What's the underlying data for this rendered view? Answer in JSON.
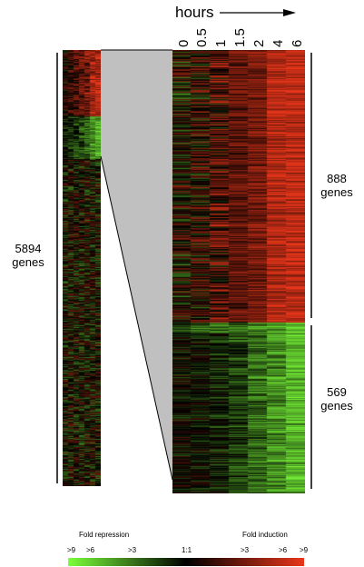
{
  "header": {
    "title": "hours"
  },
  "time_points": [
    "0",
    "0.5",
    "1",
    "1.5",
    "2",
    "4",
    "6"
  ],
  "groups": {
    "all": {
      "count": "5894",
      "unit": "genes"
    },
    "induced": {
      "count": "888",
      "unit": "genes"
    },
    "repressed": {
      "count": "569",
      "unit": "genes"
    }
  },
  "legend": {
    "repression_title": "Fold repression",
    "induction_title": "Fold induction",
    "ticks": [
      ">9",
      ">6",
      ">3",
      "1:1",
      ">3",
      ">6",
      ">9"
    ]
  },
  "colors": {
    "repression": "#7cff3a",
    "neutral": "#000000",
    "induction": "#e8361a",
    "zoom_fill": "#c0c0c0"
  }
}
